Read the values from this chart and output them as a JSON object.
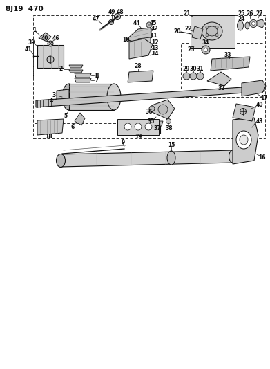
{
  "title": "8J19  470",
  "bg_color": "#ffffff",
  "fig_width": 3.91,
  "fig_height": 5.33,
  "dpi": 100,
  "line_color": "#111111"
}
